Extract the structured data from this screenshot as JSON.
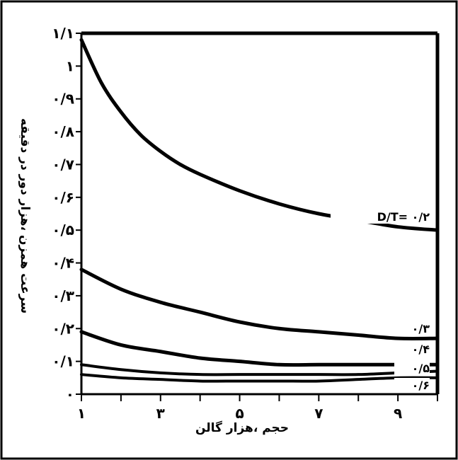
{
  "chart_data": {
    "type": "line",
    "xlabel": "حجم ،هزار گالن",
    "ylabel": "سرعت همزن ،هزار دور در دقیقه",
    "x_ticks": [
      {
        "value": 1,
        "label": "۱"
      },
      {
        "value": 3,
        "label": "۳"
      },
      {
        "value": 5,
        "label": "۵"
      },
      {
        "value": 7,
        "label": "۷"
      },
      {
        "value": 9,
        "label": "۹"
      }
    ],
    "y_ticks": [
      {
        "value": 0,
        "label": "۰"
      },
      {
        "value": 0.1,
        "label": "۰/۱"
      },
      {
        "value": 0.2,
        "label": "۰/۲"
      },
      {
        "value": 0.3,
        "label": "۰/۳"
      },
      {
        "value": 0.4,
        "label": "۰/۴"
      },
      {
        "value": 0.5,
        "label": "۰/۵"
      },
      {
        "value": 0.6,
        "label": "۰/۶"
      },
      {
        "value": 0.7,
        "label": "۰/۷"
      },
      {
        "value": 0.8,
        "label": "۰/۸"
      },
      {
        "value": 0.9,
        "label": "۰/۹"
      },
      {
        "value": 1.0,
        "label": "۱"
      },
      {
        "value": 1.1,
        "label": "۱/۱"
      }
    ],
    "xlim": [
      1,
      10
    ],
    "ylim": [
      0,
      1.1
    ],
    "grid": false,
    "series": [
      {
        "name": "D/T= ۰/۲",
        "x": [
          1,
          1.5,
          2,
          2.5,
          3,
          3.5,
          4,
          5,
          6,
          7,
          8,
          9,
          10
        ],
        "y": [
          1.08,
          0.95,
          0.86,
          0.79,
          0.74,
          0.7,
          0.67,
          0.62,
          0.58,
          0.55,
          0.53,
          0.51,
          0.5
        ]
      },
      {
        "name": "۰/۳",
        "x": [
          1,
          2,
          3,
          4,
          5,
          6,
          7,
          8,
          9,
          10
        ],
        "y": [
          0.38,
          0.32,
          0.28,
          0.25,
          0.22,
          0.2,
          0.19,
          0.18,
          0.17,
          0.17
        ]
      },
      {
        "name": "۰/۴",
        "x": [
          1,
          2,
          3,
          4,
          5,
          6,
          7,
          8,
          9,
          10
        ],
        "y": [
          0.19,
          0.15,
          0.13,
          0.11,
          0.1,
          0.09,
          0.09,
          0.09,
          0.09,
          0.09
        ]
      },
      {
        "name": "۰/۵",
        "x": [
          1,
          2,
          3,
          4,
          5,
          6,
          7,
          8,
          9,
          10
        ],
        "y": [
          0.09,
          0.075,
          0.065,
          0.06,
          0.06,
          0.06,
          0.06,
          0.06,
          0.065,
          0.07
        ]
      },
      {
        "name": "۰/۶",
        "x": [
          1,
          2,
          3,
          4,
          5,
          6,
          7,
          8,
          9,
          10
        ],
        "y": [
          0.06,
          0.05,
          0.045,
          0.04,
          0.04,
          0.04,
          0.04,
          0.045,
          0.05,
          0.05
        ]
      }
    ]
  }
}
